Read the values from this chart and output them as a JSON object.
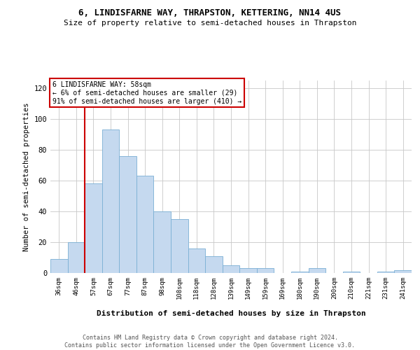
{
  "title": "6, LINDISFARNE WAY, THRAPSTON, KETTERING, NN14 4US",
  "subtitle": "Size of property relative to semi-detached houses in Thrapston",
  "xlabel": "Distribution of semi-detached houses by size in Thrapston",
  "ylabel": "Number of semi-detached properties",
  "footer_line1": "Contains HM Land Registry data © Crown copyright and database right 2024.",
  "footer_line2": "Contains public sector information licensed under the Open Government Licence v3.0.",
  "annotation_title": "6 LINDISFARNE WAY: 58sqm",
  "annotation_line2": "← 6% of semi-detached houses are smaller (29)",
  "annotation_line3": "91% of semi-detached houses are larger (410) →",
  "bar_labels": [
    "36sqm",
    "46sqm",
    "57sqm",
    "67sqm",
    "77sqm",
    "87sqm",
    "98sqm",
    "108sqm",
    "118sqm",
    "128sqm",
    "139sqm",
    "149sqm",
    "159sqm",
    "169sqm",
    "180sqm",
    "190sqm",
    "200sqm",
    "210sqm",
    "221sqm",
    "231sqm",
    "241sqm"
  ],
  "bar_values": [
    9,
    20,
    58,
    93,
    76,
    63,
    40,
    35,
    16,
    11,
    5,
    3,
    3,
    0,
    1,
    3,
    0,
    1,
    0,
    1,
    2
  ],
  "bar_color": "#c5d9ef",
  "bar_edge_color": "#7aafd4",
  "vline_index": 2,
  "vline_color": "#cc0000",
  "annotation_box_color": "#ffffff",
  "annotation_box_edge": "#cc0000",
  "ylim": [
    0,
    125
  ],
  "yticks": [
    0,
    20,
    40,
    60,
    80,
    100,
    120
  ],
  "background_color": "#ffffff",
  "grid_color": "#c8c8c8",
  "title_fontsize": 9,
  "subtitle_fontsize": 8
}
